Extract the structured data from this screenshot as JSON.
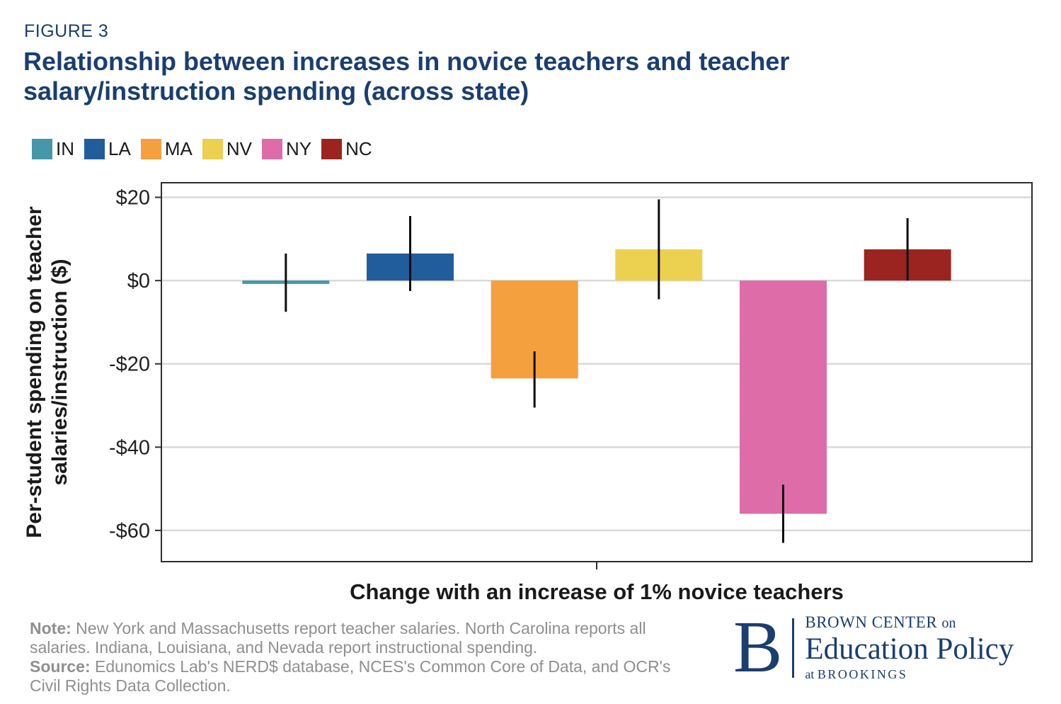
{
  "figure_label": "FIGURE 3",
  "title": "Relationship between increases in novice teachers and teacher salary/instruction spending (across state)",
  "colors": {
    "navy": "#1b3e70",
    "grid": "#d9d9d9",
    "text_dark": "#1a1a1a",
    "note_gray": "#8f8f8f"
  },
  "legend": [
    {
      "label": "IN",
      "color": "#4597a9"
    },
    {
      "label": "LA",
      "color": "#215c9c"
    },
    {
      "label": "MA",
      "color": "#f5a03f"
    },
    {
      "label": "NV",
      "color": "#ecd04f"
    },
    {
      "label": "NY",
      "color": "#de6ca8"
    },
    {
      "label": "NC",
      "color": "#9c2420"
    }
  ],
  "chart_data": {
    "type": "bar",
    "title": "Relationship between increases in novice teachers and teacher salary/instruction spending (across state)",
    "categories": [
      "IN",
      "LA",
      "MA",
      "NV",
      "NY",
      "NC"
    ],
    "values": [
      -0.8,
      6.5,
      -23.5,
      7.5,
      -56,
      7.5
    ],
    "error_low": [
      -7.5,
      -2.5,
      -30.5,
      -4.5,
      -63,
      0
    ],
    "error_high": [
      6.5,
      15.5,
      -17,
      19.5,
      -49,
      15
    ],
    "colors": [
      "#4597a9",
      "#215c9c",
      "#f5a03f",
      "#ecd04f",
      "#de6ca8",
      "#9c2420"
    ],
    "xlabel": "Change with an increase of 1% novice teachers",
    "ylabel": "Per-student spending on teacher salaries/instruction ($)",
    "ylabel_lines": [
      "Per-student spending on teacher",
      "salaries/instruction ($)"
    ],
    "ylim": [
      -67.5,
      23.5
    ],
    "yticks": [
      20,
      0,
      -20,
      -40,
      -60
    ],
    "ytick_labels": [
      "$20",
      "$0",
      "-$20",
      "-$40",
      "-$60"
    ],
    "grid": true,
    "legend_position": "top-left",
    "error_bars": true
  },
  "note": {
    "note_label": "Note:",
    "note_text": "New York and Massachusetts report teacher salaries. North Carolina reports all salaries. Indiana, Louisiana, and Nevada report instructional spending.",
    "source_label": "Source:",
    "source_text": "Edunomics Lab's NERD$ database, NCES's Common Core of Data, and OCR's Civil Rights Data Collection."
  },
  "logo": {
    "letter": "B",
    "line1_main": "BROWN CENTER",
    "line1_small": "on",
    "line2": "Education Policy",
    "line3_small": "at",
    "line3_main": "BROOKINGS"
  }
}
